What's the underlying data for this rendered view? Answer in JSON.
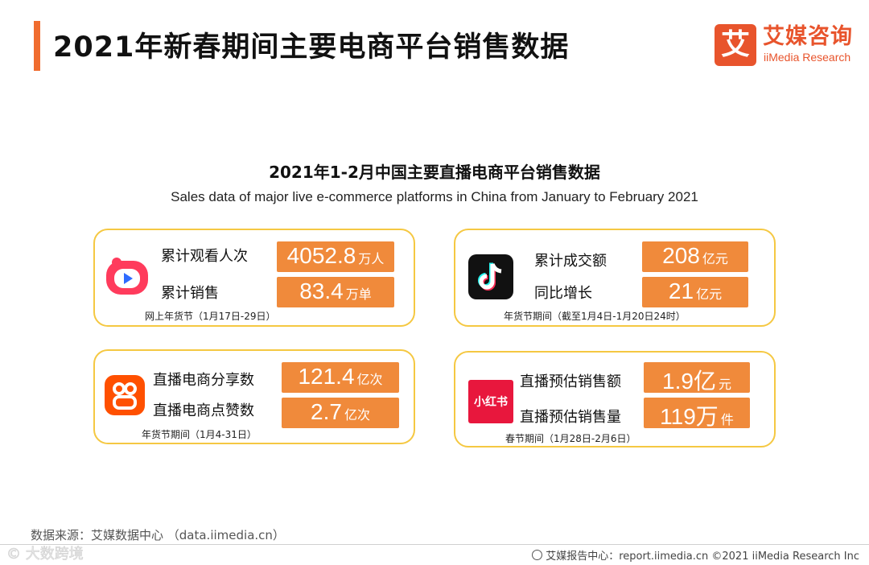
{
  "header": {
    "title": "2021年新春期间主要电商平台销售数据",
    "brand_icon_char": "艾",
    "brand_name": "艾媒咨询",
    "brand_english": "iiMedia Research",
    "brand_color": "#e8542c"
  },
  "subtitle": {
    "cn": "2021年1-2月中国主要直播电商平台销售数据",
    "en": "Sales data of major live e-commerce platforms in China from January to February 2021"
  },
  "cards": {
    "kuaishou": {
      "logo_icon": "kuaishou-logo-icon",
      "metrics": [
        {
          "label": "累计观看人次",
          "value": "4052.8",
          "unit": "万人"
        },
        {
          "label": "累计销售",
          "value": "83.4",
          "unit": "万单"
        }
      ],
      "period": "网上年货节（1月17日-29日）"
    },
    "douyin": {
      "logo_icon": "douyin-logo-icon",
      "metrics": [
        {
          "label": "累计成交额",
          "value": "208",
          "unit": "亿元"
        },
        {
          "label": "同比增长",
          "value": "21",
          "unit": "亿元"
        }
      ],
      "period": "年货节期间（截至1月4日-1月20日24时）"
    },
    "taobao": {
      "logo_icon": "taobao-live-logo-icon",
      "metrics": [
        {
          "label": "直播电商分享数",
          "value": "121.4",
          "unit": "亿次"
        },
        {
          "label": "直播电商点赞数",
          "value": "2.7",
          "unit": "亿次"
        }
      ],
      "period": "年货节期间（1月4-31日）"
    },
    "xiaohongshu": {
      "logo_icon": "xiaohongshu-logo-icon",
      "logo_text": "小红书",
      "metrics": [
        {
          "label": "直播预估销售额",
          "value": "1.9亿",
          "unit": "元"
        },
        {
          "label": "直播预估销售量",
          "value": "119万",
          "unit": "件"
        }
      ],
      "period": "春节期间（1月28日-2月6日）"
    }
  },
  "source": "数据来源：艾媒数据中心 （data.iimedia.cn）",
  "footer": {
    "text": "艾媒报告中心：report.iimedia.cn   ©2021  iiMedia Research  Inc",
    "icon": "globe-icon"
  },
  "watermark": "© 大数跨境",
  "colors": {
    "accent": "#f06c2f",
    "value_box": "#f08a3b",
    "card_border": "#f5c842"
  }
}
